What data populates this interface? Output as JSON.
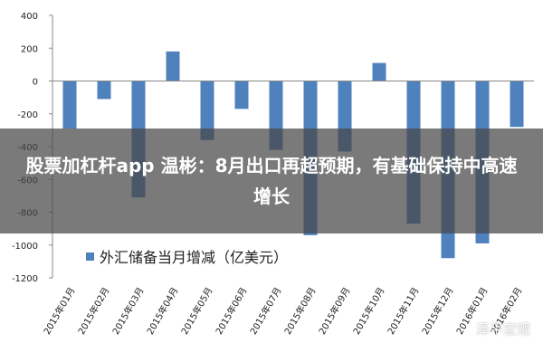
{
  "banner": {
    "headline": "股票加杠杆app 温彬：8月出口再超预期，有基础保持中高速增长"
  },
  "watermark": {
    "text": "泽平宏观"
  },
  "colors": {
    "bar": "#4F81BD",
    "axis": "#888888",
    "overlay": "#464646"
  },
  "chart_data": {
    "type": "bar",
    "categories": [
      "2015年01月",
      "2015年02月",
      "2015年03月",
      "2015年04月",
      "2015年05月",
      "2015年06月",
      "2015年07月",
      "2015年08月",
      "2015年09月",
      "2015年10月",
      "2015年11月",
      "2015年12月",
      "2016年01月",
      "2016年02月"
    ],
    "series": [
      {
        "name": "外汇储备当月增减（亿美元）",
        "values": [
          -290,
          -110,
          -710,
          180,
          -360,
          -170,
          -420,
          -940,
          -430,
          110,
          -870,
          -1080,
          -990,
          -280
        ]
      }
    ],
    "ylim": [
      -1200,
      400
    ],
    "yticks": [
      400,
      200,
      0,
      -200,
      -400,
      -600,
      -800,
      -1000,
      -1200
    ],
    "legend_position": "bottom-left",
    "grid": false
  }
}
